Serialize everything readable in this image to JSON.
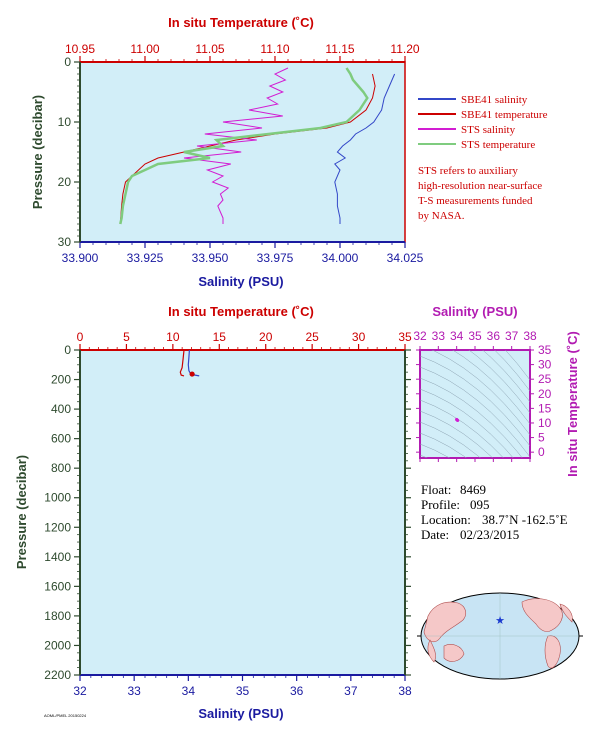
{
  "colors": {
    "temp_axis": "#cc0000",
    "sal_axis": "#1a1aa0",
    "pressure_axis": "#2e4a2e",
    "ts_axis": "#b21bb2",
    "plot_bg": "#d2eef8",
    "sbe_salinity": "#3347c8",
    "sbe_temperature": "#cc0000",
    "sts_salinity": "#d21dd2",
    "sts_temperature": "#7fcc7f"
  },
  "chart_data": [
    {
      "id": "near-surface",
      "type": "line",
      "title_top_axis": "In situ Temperature (˚C)",
      "xlabel": "Salinity (PSU)",
      "ylabel": "Pressure (decibar)",
      "temp_ticks": [
        "10.95",
        "11.00",
        "11.05",
        "11.10",
        "11.15",
        "11.20"
      ],
      "temp_range": [
        10.95,
        11.2
      ],
      "sal_ticks": [
        "33.900",
        "33.925",
        "33.950",
        "33.975",
        "34.000",
        "34.025"
      ],
      "sal_range": [
        33.9,
        34.025
      ],
      "pressure_ticks": [
        "0",
        "10",
        "20",
        "30"
      ],
      "pressure_range": [
        0,
        30
      ],
      "series": [
        {
          "name": "SBE41 salinity",
          "axis": "salinity",
          "color": "#3347c8",
          "points": [
            [
              34.021,
              2
            ],
            [
              34.019,
              4
            ],
            [
              34.017,
              6
            ],
            [
              34.016,
              8
            ],
            [
              34.013,
              10
            ],
            [
              34.01,
              11
            ],
            [
              34.006,
              12
            ],
            [
              34.004,
              13
            ],
            [
              34.001,
              14
            ],
            [
              33.999,
              15
            ],
            [
              34.002,
              16
            ],
            [
              33.998,
              17
            ],
            [
              34.0,
              18
            ],
            [
              33.998,
              20
            ],
            [
              33.999,
              22
            ],
            [
              33.999,
              24
            ],
            [
              34.0,
              26
            ],
            [
              34.0,
              27
            ]
          ]
        },
        {
          "name": "SBE41 temperature",
          "axis": "temperature",
          "color": "#cc0000",
          "points": [
            [
              11.175,
              2
            ],
            [
              11.177,
              4
            ],
            [
              11.175,
              6
            ],
            [
              11.17,
              8
            ],
            [
              11.158,
              10
            ],
            [
              11.14,
              11
            ],
            [
              11.1,
              12
            ],
            [
              11.07,
              13
            ],
            [
              11.05,
              14
            ],
            [
              11.03,
              15
            ],
            [
              11.01,
              16
            ],
            [
              11.0,
              17
            ],
            [
              10.995,
              18
            ],
            [
              10.99,
              19
            ],
            [
              10.985,
              20
            ],
            [
              10.983,
              22
            ],
            [
              10.982,
              24
            ],
            [
              10.981,
              27
            ]
          ]
        },
        {
          "name": "STS salinity",
          "axis": "salinity",
          "color": "#d21dd2",
          "points": [
            [
              33.98,
              1
            ],
            [
              33.975,
              2
            ],
            [
              33.979,
              3
            ],
            [
              33.973,
              4
            ],
            [
              33.978,
              5
            ],
            [
              33.972,
              6
            ],
            [
              33.976,
              7
            ],
            [
              33.965,
              8
            ],
            [
              33.978,
              9
            ],
            [
              33.955,
              10
            ],
            [
              33.97,
              11
            ],
            [
              33.948,
              12
            ],
            [
              33.968,
              13
            ],
            [
              33.945,
              14
            ],
            [
              33.962,
              15
            ],
            [
              33.94,
              16
            ],
            [
              33.958,
              17
            ],
            [
              33.949,
              18
            ],
            [
              33.955,
              19
            ],
            [
              33.951,
              20
            ],
            [
              33.957,
              21
            ],
            [
              33.954,
              22
            ],
            [
              33.955,
              23
            ],
            [
              33.953,
              24
            ],
            [
              33.954,
              25
            ],
            [
              33.955,
              26
            ],
            [
              33.955,
              27
            ]
          ]
        },
        {
          "name": "STS temperature",
          "axis": "temperature",
          "color": "#7fcc7f",
          "points": [
            [
              11.155,
              1
            ],
            [
              11.158,
              2
            ],
            [
              11.16,
              3
            ],
            [
              11.164,
              4
            ],
            [
              11.168,
              5
            ],
            [
              11.171,
              6
            ],
            [
              11.168,
              7
            ],
            [
              11.165,
              8
            ],
            [
              11.16,
              9
            ],
            [
              11.155,
              10
            ],
            [
              11.135,
              11
            ],
            [
              11.095,
              12
            ],
            [
              11.055,
              13
            ],
            [
              11.06,
              14
            ],
            [
              11.03,
              15
            ],
            [
              11.05,
              16
            ],
            [
              11.01,
              17
            ],
            [
              11.0,
              18
            ],
            [
              10.99,
              19
            ],
            [
              10.987,
              20
            ],
            [
              10.985,
              22
            ],
            [
              10.983,
              24
            ],
            [
              10.982,
              26
            ],
            [
              10.981,
              27
            ]
          ]
        }
      ],
      "legend": [
        "SBE41 salinity",
        "SBE41 temperature",
        "STS salinity",
        "STS temperature"
      ],
      "note": "STS refers to auxiliary high-resolution near-surface T-S measurements funded by NASA."
    },
    {
      "id": "full-profile",
      "type": "line",
      "title_top_axis": "In situ Temperature (˚C)",
      "xlabel": "Salinity (PSU)",
      "ylabel": "Pressure (decibar)",
      "temp_ticks": [
        "0",
        "5",
        "10",
        "15",
        "20",
        "25",
        "30",
        "35"
      ],
      "temp_range": [
        0,
        35
      ],
      "sal_ticks": [
        "32",
        "33",
        "34",
        "35",
        "36",
        "37",
        "38"
      ],
      "sal_range": [
        32,
        38
      ],
      "pressure_ticks": [
        "0",
        "200",
        "400",
        "600",
        "800",
        "1000",
        "1200",
        "1400",
        "1600",
        "1800",
        "2000",
        "2200"
      ],
      "pressure_range": [
        0,
        2200
      ],
      "series": [
        {
          "name": "SBE41 salinity",
          "axis": "salinity",
          "color": "#3347c8",
          "points": [
            [
              34.02,
              0
            ],
            [
              34.01,
              50
            ],
            [
              34.0,
              100
            ],
            [
              34.01,
              140
            ],
            [
              34.05,
              165
            ],
            [
              34.2,
              175
            ]
          ]
        },
        {
          "name": "SBE41 temperature",
          "axis": "temperature",
          "color": "#cc0000",
          "points": [
            [
              11.2,
              0
            ],
            [
              11.1,
              60
            ],
            [
              11.0,
              120
            ],
            [
              10.8,
              150
            ],
            [
              10.9,
              170
            ],
            [
              11.2,
              175
            ]
          ]
        }
      ],
      "marker": {
        "salinity": 34.07,
        "pressure": 163
      }
    },
    {
      "id": "ts-diagram",
      "type": "scatter",
      "xlabel": "Salinity (PSU)",
      "ylabel": "In situ Temperature (˚C)",
      "sal_ticks": [
        "32",
        "33",
        "34",
        "35",
        "36",
        "37",
        "38"
      ],
      "sal_range": [
        32,
        38
      ],
      "temp_ticks": [
        "0",
        "5",
        "10",
        "15",
        "20",
        "25",
        "30",
        "35"
      ],
      "temp_range": [
        -2,
        35
      ],
      "points": [
        [
          34.0,
          11.2
        ],
        [
          34.05,
          10.9
        ]
      ]
    }
  ],
  "info": {
    "float_label": "Float:",
    "float_value": "8469",
    "profile_label": "Profile:",
    "profile_value": "095",
    "location_label": "Location:",
    "location_value": "38.7˚N  -162.5˚E",
    "date_label": "Date:",
    "date_value": "02/23/2015"
  },
  "footer_code": "AOML/PMEL 20150224"
}
